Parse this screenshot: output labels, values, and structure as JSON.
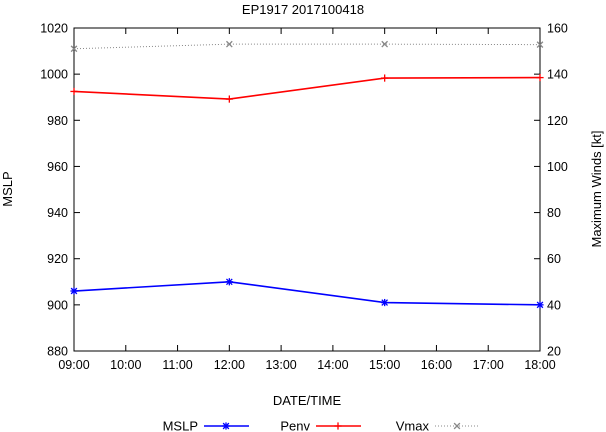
{
  "chart_data": {
    "type": "line",
    "title": "EP1917 2017100418",
    "xlabel": "DATE/TIME",
    "ylabel": "MSLP",
    "y2label": "Maximum Winds [kt]",
    "x_ticks": [
      "09:00",
      "10:00",
      "11:00",
      "12:00",
      "13:00",
      "14:00",
      "15:00",
      "16:00",
      "17:00",
      "18:00"
    ],
    "x_hours": [
      9,
      12,
      15,
      18
    ],
    "xlim": [
      9,
      18
    ],
    "ylim": [
      880,
      1020
    ],
    "y_ticks": [
      880,
      900,
      920,
      940,
      960,
      980,
      1000,
      1020
    ],
    "y2lim": [
      20,
      160
    ],
    "y2_ticks": [
      20,
      40,
      60,
      80,
      100,
      120,
      140,
      160
    ],
    "grid": false,
    "legend_position": "bottom",
    "series": [
      {
        "name": "MSLP",
        "axis": "y2",
        "color": "#0000ff",
        "marker": "asterisk",
        "values": [
          46,
          50,
          41,
          40
        ]
      },
      {
        "name": "Penv",
        "axis": "y",
        "color": "#ff0000",
        "marker": "plus",
        "values": [
          992.5,
          989.2,
          998.3,
          998.5
        ]
      },
      {
        "name": "Vmax",
        "axis": "y",
        "color": "#888888",
        "marker": "x",
        "dotted": true,
        "values": [
          1011,
          1013,
          1013,
          1012.8
        ]
      }
    ]
  }
}
